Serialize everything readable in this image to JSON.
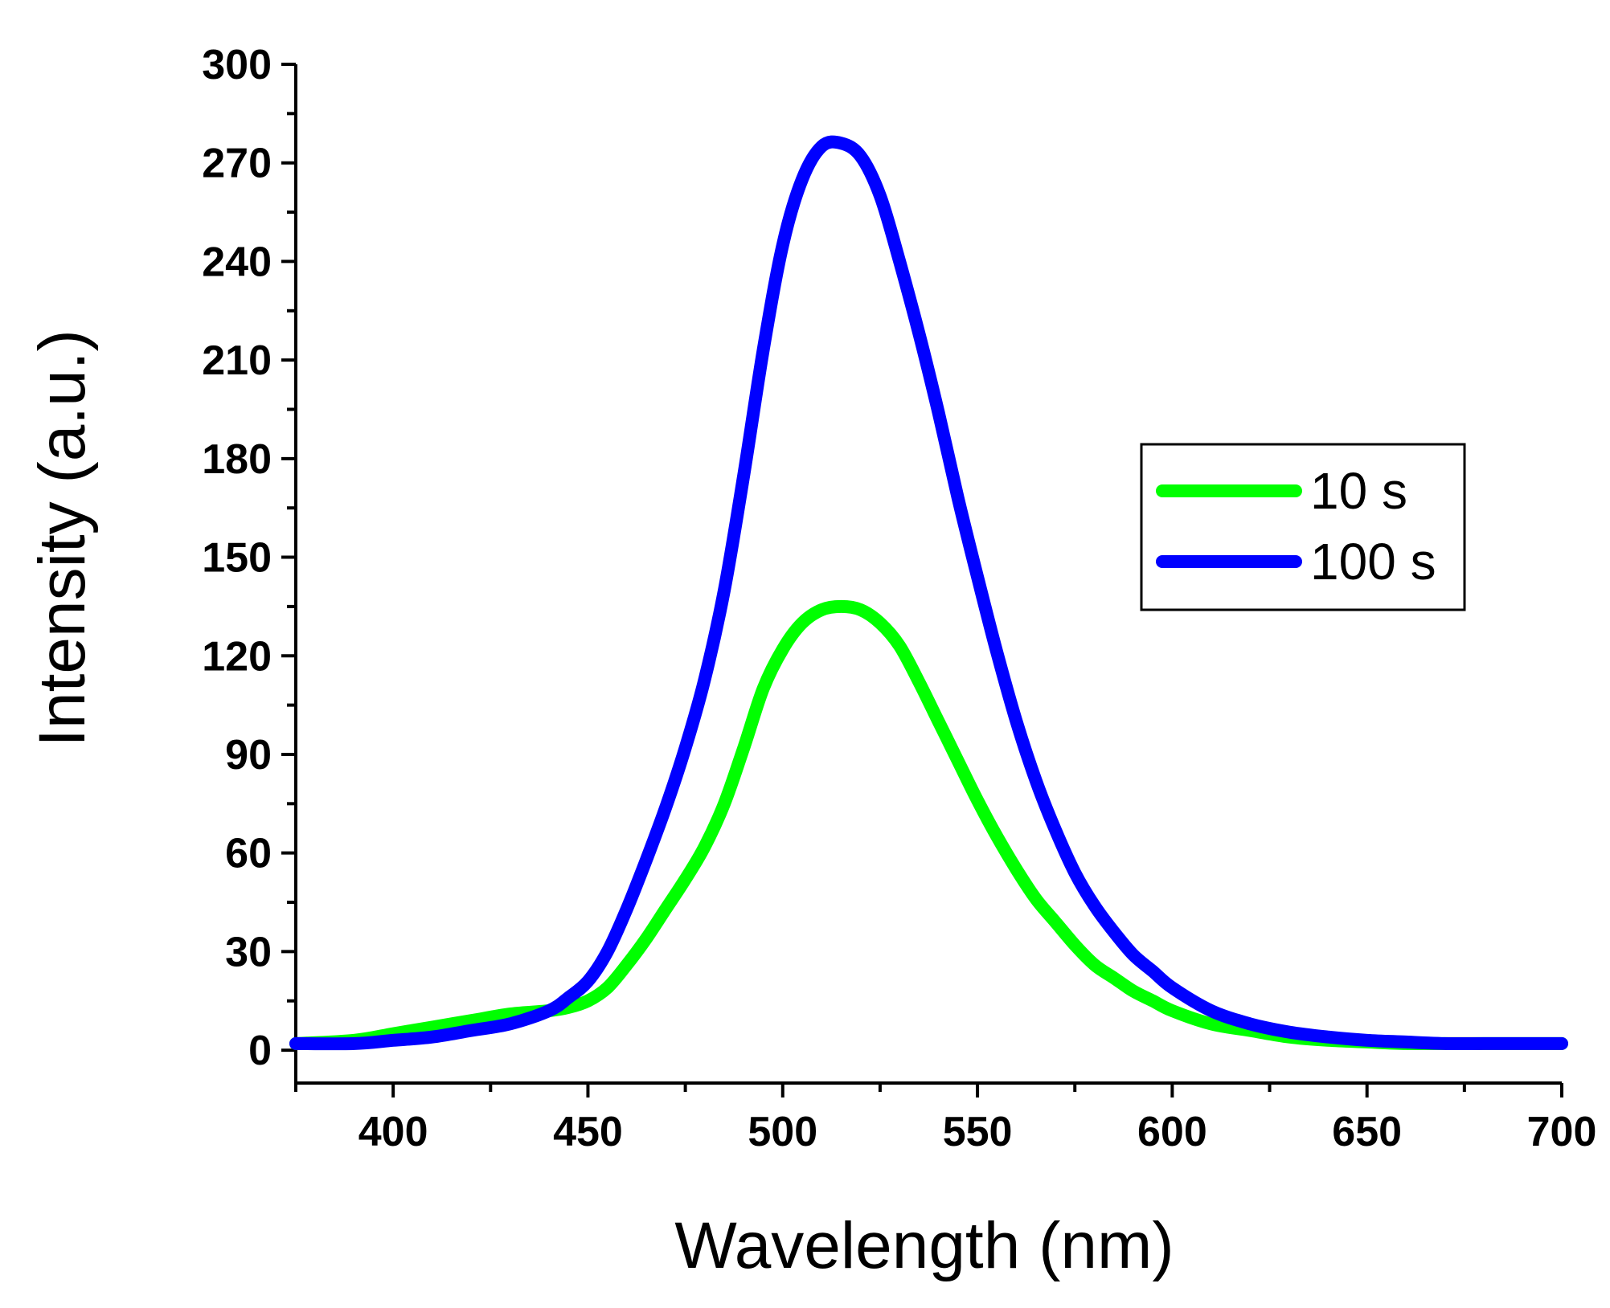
{
  "chart_data": {
    "type": "line",
    "title": "",
    "xlabel": "Wavelength (nm)",
    "ylabel": "Intensity (a.u.)",
    "xlim": [
      375,
      700
    ],
    "ylim": [
      -10,
      300
    ],
    "xticks": [
      400,
      450,
      500,
      550,
      600,
      650,
      700
    ],
    "yticks": [
      0,
      30,
      60,
      90,
      120,
      150,
      180,
      210,
      240,
      270,
      300
    ],
    "xtick_labels": [
      "400",
      "450",
      "500",
      "550",
      "600",
      "650",
      "700"
    ],
    "ytick_labels": [
      "0",
      "30",
      "60",
      "90",
      "120",
      "150",
      "180",
      "210",
      "240",
      "270",
      "300"
    ],
    "grid": false,
    "legend_position": "right",
    "series": [
      {
        "name": "10 s",
        "color": "#00ff00",
        "x": [
          375,
          390,
          400,
          410,
          420,
          430,
          440,
          445,
          450,
          455,
          460,
          465,
          470,
          475,
          480,
          485,
          490,
          495,
          500,
          505,
          510,
          515,
          520,
          525,
          530,
          535,
          540,
          545,
          550,
          555,
          560,
          565,
          570,
          575,
          580,
          585,
          590,
          595,
          600,
          610,
          620,
          630,
          640,
          650,
          660,
          670,
          680,
          690,
          700
        ],
        "y": [
          2,
          3,
          5,
          7,
          9,
          11,
          12,
          13,
          15,
          19,
          26,
          34,
          43,
          52,
          62,
          75,
          92,
          110,
          122,
          130,
          134,
          135,
          134,
          130,
          123,
          112,
          100,
          88,
          76,
          65,
          55,
          46,
          39,
          32,
          26,
          22,
          18,
          15,
          12,
          8,
          6,
          4,
          3,
          2.5,
          2,
          2,
          2,
          2,
          2
        ]
      },
      {
        "name": "100 s",
        "color": "#0000ff",
        "x": [
          375,
          390,
          400,
          410,
          420,
          430,
          440,
          445,
          450,
          455,
          460,
          465,
          470,
          475,
          480,
          485,
          490,
          495,
          500,
          505,
          510,
          515,
          520,
          525,
          530,
          535,
          540,
          545,
          550,
          555,
          560,
          565,
          570,
          575,
          580,
          585,
          590,
          595,
          600,
          610,
          620,
          630,
          640,
          650,
          660,
          670,
          680,
          690,
          700
        ],
        "y": [
          2,
          2,
          3,
          4,
          6,
          8,
          12,
          16,
          21,
          30,
          43,
          58,
          74,
          92,
          113,
          140,
          175,
          213,
          245,
          265,
          275,
          276,
          272,
          260,
          240,
          218,
          194,
          168,
          144,
          121,
          100,
          82,
          67,
          54,
          44,
          36,
          29,
          24,
          19,
          12,
          8,
          5.5,
          4,
          3,
          2.5,
          2,
          2,
          2,
          2
        ]
      }
    ]
  }
}
